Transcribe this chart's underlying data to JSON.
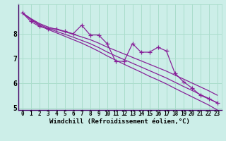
{
  "xlabel": "Windchill (Refroidissement éolien,°C)",
  "bg_color": "#cceee8",
  "grid_color": "#aaddcc",
  "line_color": "#882299",
  "x_data": [
    0,
    1,
    2,
    3,
    4,
    5,
    6,
    7,
    8,
    9,
    10,
    11,
    12,
    13,
    14,
    15,
    16,
    17,
    18,
    19,
    20,
    21,
    22,
    23
  ],
  "y_main": [
    8.85,
    8.5,
    8.3,
    8.2,
    8.2,
    8.1,
    8.0,
    8.35,
    7.95,
    7.95,
    7.6,
    6.88,
    6.88,
    7.6,
    7.25,
    7.25,
    7.45,
    7.3,
    6.4,
    6.05,
    5.8,
    5.5,
    5.35,
    5.2
  ],
  "y_reg1": [
    8.85,
    8.62,
    8.42,
    8.28,
    8.18,
    8.08,
    7.98,
    7.87,
    7.76,
    7.62,
    7.46,
    7.32,
    7.18,
    7.04,
    6.9,
    6.76,
    6.62,
    6.48,
    6.32,
    6.16,
    6.0,
    5.84,
    5.68,
    5.5
  ],
  "y_reg2": [
    8.85,
    8.6,
    8.38,
    8.23,
    8.1,
    7.98,
    7.86,
    7.73,
    7.6,
    7.44,
    7.26,
    7.1,
    6.95,
    6.8,
    6.65,
    6.5,
    6.35,
    6.2,
    6.03,
    5.86,
    5.7,
    5.53,
    5.37,
    5.18
  ],
  "y_reg3": [
    8.85,
    8.58,
    8.34,
    8.18,
    8.04,
    7.9,
    7.76,
    7.62,
    7.46,
    7.29,
    7.1,
    6.93,
    6.76,
    6.6,
    6.44,
    6.27,
    6.12,
    5.96,
    5.78,
    5.61,
    5.44,
    5.27,
    5.1,
    4.9
  ],
  "ylim": [
    4.9,
    9.2
  ],
  "yticks": [
    5,
    6,
    7,
    8
  ],
  "xlim": [
    -0.5,
    23.5
  ],
  "xticks": [
    0,
    1,
    2,
    3,
    4,
    5,
    6,
    7,
    8,
    9,
    10,
    11,
    12,
    13,
    14,
    15,
    16,
    17,
    18,
    19,
    20,
    21,
    22,
    23
  ],
  "marker": "+",
  "markersize": 4,
  "linewidth": 0.9,
  "xlabel_fontsize": 6.5,
  "tick_fontsize": 5.5
}
